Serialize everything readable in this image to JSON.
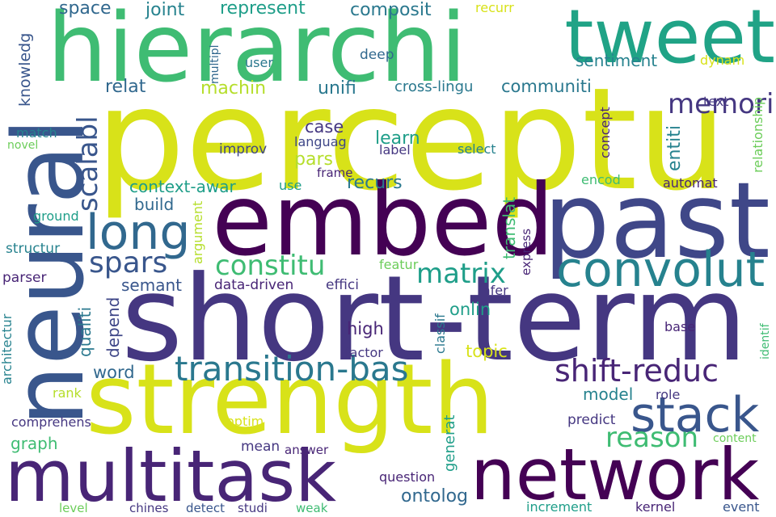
{
  "palette": {
    "yellow": "#d8e219",
    "lime": "#b5de2b",
    "green_light": "#6ccd5a",
    "green": "#3fbc73",
    "teal_green": "#20a386",
    "teal": "#1f9e89",
    "teal_dark": "#26828e",
    "blue_teal": "#2a788e",
    "blue": "#31688e",
    "blue_dark": "#39568c",
    "indigo": "#3f4788",
    "purple": "#453781",
    "purple_dark": "#482576",
    "deep": "#440154"
  },
  "words": [
    "perceptu",
    "hierarchi",
    "tweet",
    "embed",
    "past",
    "neural",
    "short-term",
    "strength",
    "multitask",
    "network",
    "long",
    "convolut",
    "stack",
    "transition-bas",
    "shift-reduc",
    "constitu",
    "matrix",
    "memori",
    "scalabl",
    "spars",
    "reason",
    "joint",
    "represent",
    "composit",
    "space",
    "sentiment",
    "machin",
    "unifi",
    "communiti",
    "relat",
    "knowledg",
    "deep",
    "cross-lingu",
    "recurr",
    "dynam",
    "multipl",
    "user",
    "text",
    "relationship",
    "entiti",
    "concept",
    "case",
    "languag",
    "learn",
    "label",
    "select",
    "improv",
    "pars",
    "frame",
    "encod",
    "automat",
    "context-awar",
    "build",
    "use",
    "recurs",
    "translat",
    "match",
    "novel",
    "ground",
    "argument",
    "express",
    "structur",
    "parser",
    "qualiti",
    "semant",
    "data-driven",
    "effici",
    "featur",
    "infer",
    "depend",
    "onlin",
    "high",
    "classif",
    "identif",
    "architectur",
    "base",
    "factor",
    "topic",
    "word",
    "model",
    "rank",
    "role",
    "comprehens",
    "optim",
    "predict",
    "generat",
    "content",
    "graph",
    "mean",
    "answer",
    "question",
    "ontolog",
    "level",
    "chines",
    "detect",
    "studi",
    "weak",
    "increment",
    "kernel",
    "event"
  ]
}
